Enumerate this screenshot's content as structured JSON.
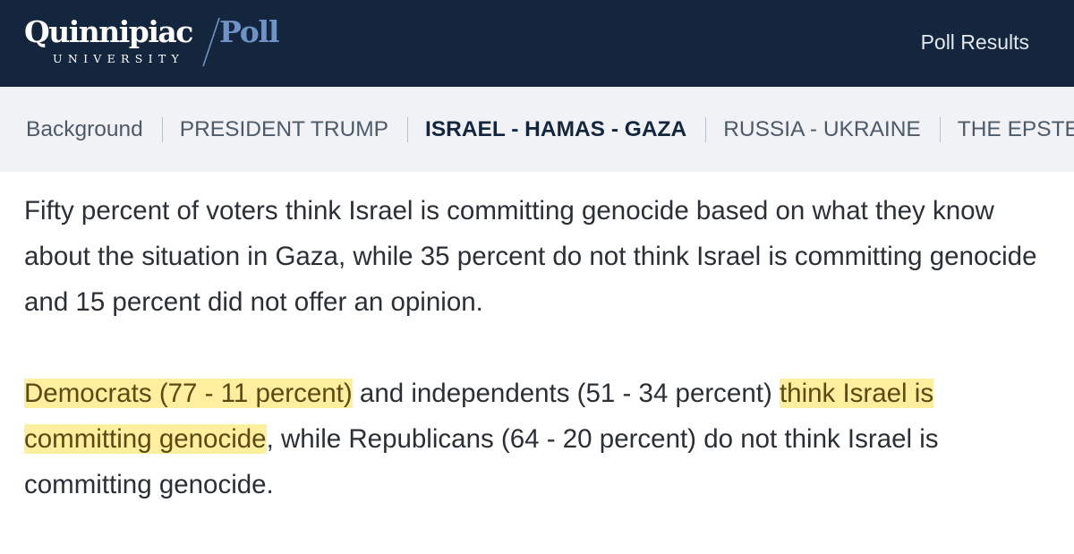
{
  "header": {
    "logo_main": "Quinnipiac",
    "logo_poll": "Poll",
    "logo_university": "UNIVERSITY",
    "nav_link": "Poll Results",
    "background_color": "#14263e",
    "accent_color": "#6f93c6"
  },
  "tabs": [
    {
      "label": "Background",
      "active": false
    },
    {
      "label": "PRESIDENT TRUMP",
      "active": false
    },
    {
      "label": "ISRAEL - HAMAS - GAZA",
      "active": true
    },
    {
      "label": "RUSSIA - UKRAINE",
      "active": false
    },
    {
      "label": "THE EPSTEIN",
      "active": false
    }
  ],
  "article": {
    "paragraph1": "Fifty percent of voters think Israel is committing genocide based on what they know about the situation in Gaza, while 35 percent do not think Israel is committing genocide and 15 percent did not offer an opinion.",
    "paragraph2": {
      "seg1_highlight": "Democrats (77 - 11 percent)",
      "seg2": " and independents (51 - 34 percent) ",
      "seg3_highlight": "think Israel is committing genocide",
      "seg4": ", while Republicans (64 - 20 percent) do not think Israel is committing genocide."
    },
    "highlight_color": "#fcef9e"
  }
}
